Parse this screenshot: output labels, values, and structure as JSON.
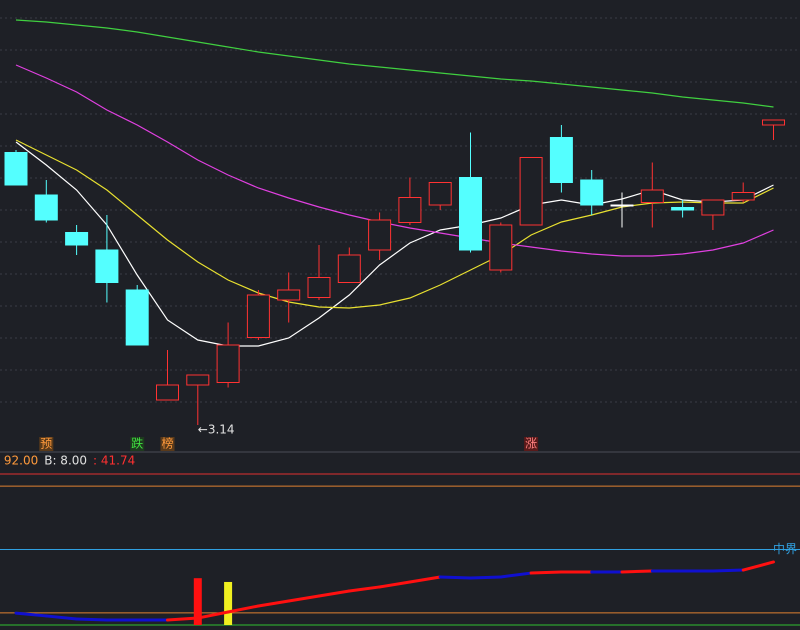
{
  "chart_data": [
    {
      "type": "candlestick",
      "ylim": [
        3.12,
        4.84
      ],
      "up_color": "#ff3232",
      "down_color": "#54ffff",
      "flat_color": "#ffffff",
      "open": [
        4.23,
        4.06,
        3.91,
        3.84,
        3.68,
        3.24,
        3.3,
        3.31,
        3.49,
        3.64,
        3.65,
        3.71,
        3.84,
        3.95,
        4.02,
        4.13,
        3.76,
        3.94,
        4.29,
        4.12,
        4.02,
        4.03,
        4.01,
        3.98,
        4.04,
        4.34
      ],
      "high": [
        4.24,
        4.12,
        3.94,
        3.98,
        3.7,
        3.44,
        3.34,
        3.55,
        3.68,
        3.75,
        3.86,
        3.85,
        3.99,
        4.13,
        4.11,
        4.31,
        3.95,
        4.21,
        4.34,
        4.16,
        4.07,
        4.19,
        4.04,
        4.04,
        4.11,
        4.36
      ],
      "low": [
        4.1,
        3.95,
        3.82,
        3.63,
        3.46,
        3.24,
        3.14,
        3.29,
        3.48,
        3.55,
        3.64,
        3.71,
        3.8,
        3.94,
        4.0,
        3.83,
        3.75,
        3.94,
        4.07,
        3.98,
        3.93,
        3.93,
        3.97,
        3.92,
        4.03,
        4.28
      ],
      "close": [
        4.1,
        3.96,
        3.86,
        3.71,
        3.46,
        3.3,
        3.34,
        3.46,
        3.66,
        3.68,
        3.73,
        3.82,
        3.96,
        4.05,
        4.11,
        3.84,
        3.94,
        4.21,
        4.11,
        4.02,
        4.02,
        4.08,
        4.0,
        4.04,
        4.07,
        4.36
      ],
      "series": [
        {
          "color": "#ffffff",
          "values": [
            4.272,
            4.18,
            4.08,
            3.94,
            3.74,
            3.56,
            3.48,
            3.456,
            3.456,
            3.488,
            3.568,
            3.66,
            3.78,
            3.868,
            3.92,
            3.94,
            3.968,
            4.02,
            4.04,
            4.02,
            4.044,
            4.08,
            4.04,
            4.032,
            4.04,
            4.1
          ]
        },
        {
          "color": "#e8e030",
          "values": [
            4.28,
            4.22,
            4.16,
            4.08,
            3.98,
            3.88,
            3.792,
            3.72,
            3.668,
            3.632,
            3.612,
            3.608,
            3.62,
            3.648,
            3.7,
            3.76,
            3.82,
            3.9,
            3.952,
            3.98,
            4.012,
            4.028,
            4.032,
            4.028,
            4.028,
            4.088
          ]
        },
        {
          "color": "#e040e0",
          "values": [
            4.58,
            4.528,
            4.472,
            4.4,
            4.34,
            4.272,
            4.2,
            4.14,
            4.088,
            4.048,
            4.012,
            3.98,
            3.952,
            3.928,
            3.908,
            3.888,
            3.868,
            3.852,
            3.836,
            3.824,
            3.816,
            3.816,
            3.824,
            3.84,
            3.868,
            3.92
          ]
        },
        {
          "color": "#40d040",
          "values": [
            4.76,
            4.752,
            4.74,
            4.728,
            4.712,
            4.692,
            4.672,
            4.652,
            4.632,
            4.616,
            4.6,
            4.584,
            4.572,
            4.56,
            4.548,
            4.536,
            4.524,
            4.516,
            4.504,
            4.492,
            4.48,
            4.468,
            4.452,
            4.44,
            4.428,
            4.412
          ]
        }
      ],
      "low_label": "←3.14",
      "low_label_index": 6,
      "markers": [
        {
          "index": 1,
          "text": "预",
          "color": "#ff9a3c",
          "background": "#5a3a1a"
        },
        {
          "index": 4,
          "text": "跌",
          "color": "#40e040",
          "background": "#1e3a1e"
        },
        {
          "index": 5,
          "text": "榜",
          "color": "#ff9a3c",
          "background": "#5a3a1a"
        },
        {
          "index": 17,
          "text": "涨",
          "color": "#ff8080",
          "background": "#5a1a1a"
        }
      ]
    },
    {
      "type": "indicator",
      "ylim": [
        0,
        100
      ],
      "header": [
        {
          "text": ": 92.00",
          "color": "#ff9a3c"
        },
        {
          "text": "B: 8.00",
          "color": "#e0e0e0"
        },
        {
          "text": ": 41.74",
          "color": "#ff3030"
        }
      ],
      "levels": [
        {
          "value": 100,
          "color": "#e03030"
        },
        {
          "value": 92,
          "color": "#e08030"
        },
        {
          "value": 50,
          "color": "#30a0e0",
          "label": "中界"
        },
        {
          "value": 8,
          "color": "#e08030"
        },
        {
          "value": 0,
          "color": "#30c030"
        }
      ],
      "values": [
        7.9,
        6.0,
        4.0,
        3.3,
        3.3,
        3.3,
        4.6,
        8.6,
        12.6,
        15.9,
        19.2,
        22.5,
        25.2,
        28.5,
        31.8,
        31.1,
        31.8,
        34.4,
        35.1,
        35.1,
        35.1,
        35.8,
        35.8,
        35.8,
        36.4,
        41.74
      ],
      "point_colors": [
        "#1010d0",
        "#1010d0",
        "#1010d0",
        "#1010d0",
        "#1010d0",
        "#1010d0",
        "#ff1010",
        "#ff1010",
        "#ff1010",
        "#ff1010",
        "#ff1010",
        "#ff1010",
        "#ff1010",
        "#ff1010",
        "#ff1010",
        "#1010d0",
        "#1010d0",
        "#1010d0",
        "#ff1010",
        "#ff1010",
        "#1010d0",
        "#ff1010",
        "#1010d0",
        "#1010d0",
        "#1010d0",
        "#ff1010"
      ],
      "signals": [
        {
          "index": 6,
          "value": 31,
          "color": "#ff1010"
        },
        {
          "index": 7,
          "value": 28.5,
          "color": "#f0f020"
        }
      ]
    }
  ]
}
